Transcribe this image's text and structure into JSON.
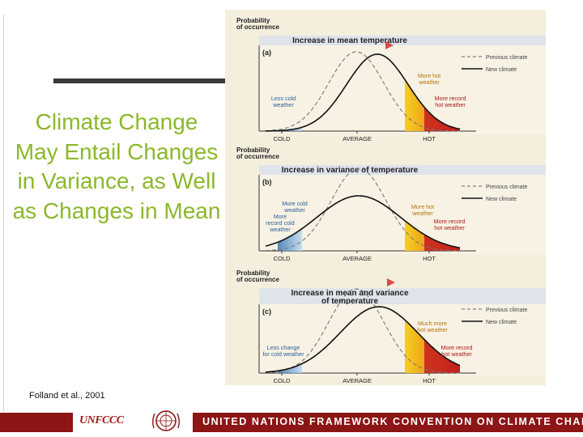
{
  "slide": {
    "title": "Climate Change May Entail Changes in Variance, as Well as Changes in Mean",
    "citation": "Folland et al., 2001"
  },
  "figure": {
    "y_axis_label_line1": "Probability",
    "y_axis_label_line2": "of occurrence",
    "legend": {
      "previous": "Previous climate",
      "new": "New climate"
    },
    "x_ticks": [
      "COLD",
      "AVERAGE",
      "HOT"
    ],
    "panels": [
      {
        "letter": "(a)",
        "heading": [
          "Increase in mean temperature"
        ],
        "cold_labels": [
          "Less cold",
          "weather"
        ],
        "hot_labels_1": [
          "More hot",
          "weather"
        ],
        "hot_labels_2": [
          "More record",
          "hot weather"
        ]
      },
      {
        "letter": "(b)",
        "heading": [
          "Increase in variance of temperature"
        ],
        "cold_labels": [
          "More cold",
          "weather"
        ],
        "cold_labels_2": [
          "More",
          "record cold",
          "weather"
        ],
        "hot_labels_1": [
          "More hot",
          "weather"
        ],
        "hot_labels_2": [
          "More record",
          "hot weather"
        ]
      },
      {
        "letter": "(c)",
        "heading": [
          "Increase in mean and variance",
          "of temperature"
        ],
        "cold_labels": [
          "Less change",
          "for cold weather"
        ],
        "hot_labels_1": [
          "Much more",
          "hot weather"
        ],
        "hot_labels_2": [
          "More record",
          "hot weather"
        ]
      }
    ],
    "colors": {
      "hot": "#e8a01e",
      "hot_record": "#c41e1e",
      "cold": "#4a90d0",
      "heading_bg": "#dfe3ea",
      "background": "#f4eedd"
    }
  },
  "footer": {
    "logo_text": "UNFCCC",
    "banner": "UNITED NATIONS FRAMEWORK CONVENTION ON CLIMATE CHANGE"
  }
}
